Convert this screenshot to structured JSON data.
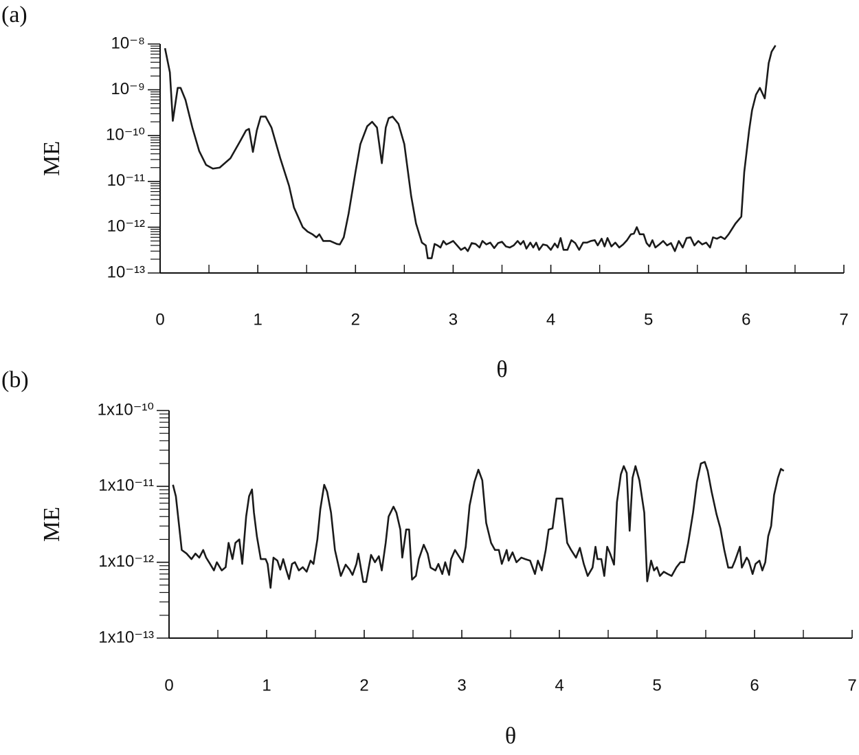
{
  "chart_data": [
    {
      "type": "line",
      "title": "(a)",
      "x_label": "θ",
      "y_label": "ME",
      "color": "#1a1a1a",
      "log_y": true,
      "xlim": [
        0,
        7
      ],
      "xticks": [
        0,
        1,
        2,
        3,
        4,
        5,
        6,
        7
      ],
      "xminor": [
        0.5,
        1.5,
        2.5,
        3.5,
        4.5,
        5.5,
        6.5
      ],
      "ylim": [
        1e-13,
        1e-08
      ],
      "yticks": [
        {
          "value": 1e-13,
          "label": "10⁻¹³"
        },
        {
          "value": 1e-12,
          "label": "10⁻¹²"
        },
        {
          "value": 1e-11,
          "label": "10⁻¹¹"
        },
        {
          "value": 1e-10,
          "label": "10⁻¹⁰"
        },
        {
          "value": 1e-09,
          "label": "10⁻⁹"
        },
        {
          "value": 1e-08,
          "label": "10⁻⁸"
        }
      ],
      "yminor": [
        2e-13,
        3e-13,
        4e-13,
        5e-13,
        6e-13,
        7e-13,
        8e-13,
        9e-13,
        2e-12,
        3e-12,
        4e-12,
        5e-12,
        6e-12,
        7e-12,
        8e-12,
        9e-12,
        2e-11,
        3e-11,
        4e-11,
        5e-11,
        6e-11,
        7e-11,
        8e-11,
        9e-11,
        2e-10,
        3e-10,
        4e-10,
        5e-10,
        6e-10,
        7e-10,
        8e-10,
        9e-10,
        2e-09,
        3e-09,
        4e-09,
        5e-09,
        6e-09,
        7e-09,
        8e-09,
        9e-09
      ],
      "x": [
        0.05,
        0.1,
        0.13,
        0.18,
        0.21,
        0.26,
        0.33,
        0.4,
        0.47,
        0.54,
        0.61,
        0.72,
        0.82,
        0.88,
        0.91,
        0.95,
        0.99,
        1.03,
        1.08,
        1.14,
        1.23,
        1.32,
        1.37,
        1.46,
        1.51,
        1.56,
        1.6,
        1.63,
        1.67,
        1.74,
        1.81,
        1.84,
        1.88,
        1.93,
        2.0,
        2.05,
        2.12,
        2.17,
        2.22,
        2.27,
        2.31,
        2.34,
        2.38,
        2.44,
        2.5,
        2.57,
        2.62,
        2.68,
        2.72,
        2.74,
        2.78,
        2.81,
        2.84,
        2.87,
        2.9,
        2.93,
        2.96,
        3.0,
        3.04,
        3.08,
        3.12,
        3.15,
        3.19,
        3.23,
        3.27,
        3.3,
        3.34,
        3.38,
        3.42,
        3.46,
        3.5,
        3.54,
        3.58,
        3.62,
        3.66,
        3.69,
        3.72,
        3.75,
        3.79,
        3.82,
        3.85,
        3.88,
        3.92,
        3.96,
        4.0,
        4.04,
        4.07,
        4.1,
        4.13,
        4.17,
        4.21,
        4.25,
        4.29,
        4.33,
        4.37,
        4.41,
        4.45,
        4.48,
        4.52,
        4.55,
        4.58,
        4.62,
        4.66,
        4.7,
        4.74,
        4.78,
        4.82,
        4.85,
        4.88,
        4.91,
        4.95,
        4.98,
        5.01,
        5.04,
        5.07,
        5.11,
        5.15,
        5.19,
        5.23,
        5.27,
        5.31,
        5.35,
        5.39,
        5.43,
        5.47,
        5.51,
        5.55,
        5.59,
        5.63,
        5.66,
        5.7,
        5.74,
        5.78,
        5.82,
        5.89,
        5.95,
        5.98,
        6.03,
        6.06,
        6.1,
        6.14,
        6.19,
        6.23,
        6.26,
        6.3
      ],
      "values": [
        8.1e-09,
        2.4e-09,
        2.1e-10,
        1.1e-09,
        1.1e-09,
        6e-10,
        1.5e-10,
        4.6e-11,
        2.3e-11,
        1.9e-11,
        2e-11,
        3.2e-11,
        7.6e-11,
        1.3e-10,
        1.4e-10,
        4.4e-11,
        1.3e-10,
        2.6e-10,
        2.6e-10,
        1.5e-10,
        3.2e-11,
        8e-12,
        2.7e-12,
        1e-12,
        8e-13,
        7e-13,
        6e-13,
        7e-13,
        5e-13,
        5e-13,
        4.3e-13,
        4.2e-13,
        6e-13,
        2e-12,
        1.6e-11,
        6.5e-11,
        1.6e-10,
        2e-10,
        1.5e-10,
        2.5e-11,
        1.5e-10,
        2.4e-10,
        2.6e-10,
        1.8e-10,
        6.5e-11,
        4.8e-12,
        1.2e-12,
        4.6e-13,
        4e-13,
        2.1e-13,
        2.1e-13,
        4.3e-13,
        4e-13,
        3.6e-13,
        5e-13,
        4.2e-13,
        4.5e-13,
        5e-13,
        4e-13,
        3.2e-13,
        3.6e-13,
        3e-13,
        4.5e-13,
        4.3e-13,
        3.6e-13,
        5e-13,
        4.2e-13,
        4.6e-13,
        3.5e-13,
        4.5e-13,
        4.8e-13,
        3.8e-13,
        3.6e-13,
        4e-13,
        5e-13,
        4.2e-13,
        5e-13,
        3.4e-13,
        4.6e-13,
        3.6e-13,
        4.6e-13,
        3.2e-13,
        4.2e-13,
        4e-13,
        3.2e-13,
        4.4e-13,
        3.6e-13,
        5.8e-13,
        3.2e-13,
        3.2e-13,
        5.2e-13,
        4.5e-13,
        3.2e-13,
        4.6e-13,
        4.6e-13,
        5e-13,
        5.2e-13,
        4e-13,
        5.6e-13,
        3.8e-13,
        5.8e-13,
        3.8e-13,
        4.6e-13,
        3.6e-13,
        4.2e-13,
        5.2e-13,
        7e-13,
        7.2e-13,
        1e-12,
        7e-13,
        7e-13,
        4.5e-13,
        3.8e-13,
        5.2e-13,
        3.6e-13,
        4.2e-13,
        5e-13,
        4e-13,
        4.5e-13,
        3e-13,
        5e-13,
        3.6e-13,
        5.8e-13,
        6e-13,
        4e-13,
        5e-13,
        4.2e-13,
        4.6e-13,
        3.6e-13,
        6e-13,
        5.6e-13,
        6.2e-13,
        5.5e-13,
        7e-13,
        1.2e-12,
        1.7e-12,
        1.6e-11,
        1.3e-10,
        3.6e-10,
        7.8e-10,
        1.1e-09,
        6.5e-10,
        3.8e-09,
        6.8e-09,
        9.3e-09
      ]
    },
    {
      "type": "line",
      "title": "(b)",
      "x_label": "θ",
      "y_label": "ME",
      "color": "#1a1a1a",
      "log_y": true,
      "xlim": [
        0,
        7
      ],
      "xticks": [
        0,
        1,
        2,
        3,
        4,
        5,
        6,
        7
      ],
      "xminor": [
        0.5,
        1.5,
        2.5,
        3.5,
        4.5,
        5.5,
        6.5
      ],
      "ylim": [
        1e-13,
        1e-10
      ],
      "yticks": [
        {
          "value": 1e-13,
          "label": "1x10⁻¹³"
        },
        {
          "value": 1e-12,
          "label": "1x10⁻¹²"
        },
        {
          "value": 1e-11,
          "label": "1x10⁻¹¹"
        },
        {
          "value": 1e-10,
          "label": "1x10⁻¹⁰"
        }
      ],
      "yminor": [
        2e-13,
        3e-13,
        4e-13,
        5e-13,
        6e-13,
        7e-13,
        8e-13,
        9e-13,
        2e-12,
        3e-12,
        4e-12,
        5e-12,
        6e-12,
        7e-12,
        8e-12,
        9e-12,
        2e-11,
        3e-11,
        4e-11,
        5e-11,
        6e-11,
        7e-11,
        8e-11,
        9e-11
      ],
      "x": [
        0.04,
        0.07,
        0.13,
        0.18,
        0.23,
        0.27,
        0.31,
        0.35,
        0.38,
        0.42,
        0.46,
        0.49,
        0.54,
        0.58,
        0.61,
        0.65,
        0.68,
        0.72,
        0.75,
        0.79,
        0.82,
        0.85,
        0.87,
        0.9,
        0.94,
        0.99,
        1.01,
        1.04,
        1.07,
        1.11,
        1.14,
        1.17,
        1.2,
        1.23,
        1.26,
        1.29,
        1.33,
        1.37,
        1.41,
        1.45,
        1.48,
        1.52,
        1.55,
        1.59,
        1.62,
        1.66,
        1.7,
        1.76,
        1.81,
        1.85,
        1.88,
        1.92,
        1.94,
        1.99,
        2.02,
        2.07,
        2.11,
        2.15,
        2.18,
        2.22,
        2.25,
        2.3,
        2.33,
        2.37,
        2.39,
        2.43,
        2.46,
        2.49,
        2.53,
        2.56,
        2.61,
        2.65,
        2.68,
        2.73,
        2.76,
        2.8,
        2.83,
        2.87,
        2.89,
        2.93,
        2.97,
        3.01,
        3.04,
        3.08,
        3.13,
        3.17,
        3.21,
        3.25,
        3.3,
        3.34,
        3.38,
        3.41,
        3.46,
        3.48,
        3.52,
        3.56,
        3.61,
        3.65,
        3.7,
        3.75,
        3.78,
        3.82,
        3.86,
        3.89,
        3.93,
        3.97,
        4.03,
        4.08,
        4.12,
        4.17,
        4.21,
        4.25,
        4.29,
        4.34,
        4.37,
        4.39,
        4.43,
        4.46,
        4.49,
        4.52,
        4.56,
        4.59,
        4.63,
        4.66,
        4.69,
        4.72,
        4.75,
        4.78,
        4.82,
        4.87,
        4.9,
        4.94,
        4.97,
        5.0,
        5.03,
        5.07,
        5.11,
        5.15,
        5.2,
        5.24,
        5.28,
        5.32,
        5.37,
        5.41,
        5.45,
        5.49,
        5.52,
        5.56,
        5.61,
        5.65,
        5.69,
        5.73,
        5.77,
        5.8,
        5.85,
        5.87,
        5.92,
        5.94,
        5.98,
        6.01,
        6.05,
        6.08,
        6.11,
        6.14,
        6.17,
        6.2,
        6.24,
        6.27,
        6.3
      ],
      "values": [
        1.05e-11,
        7.4e-12,
        1.45e-12,
        1.3e-12,
        1.1e-12,
        1.3e-12,
        1.15e-12,
        1.45e-12,
        1.15e-12,
        9.5e-13,
        7.8e-13,
        1e-12,
        7.8e-13,
        8.6e-13,
        1.8e-12,
        1.1e-12,
        1.8e-12,
        2e-12,
        9.5e-13,
        4e-12,
        7.4e-12,
        9.1e-12,
        4.5e-12,
        2.2e-12,
        1.1e-12,
        1.1e-12,
        9.5e-13,
        4.6e-13,
        1.15e-12,
        1.05e-12,
        8e-13,
        1.1e-12,
        8e-13,
        6e-13,
        9.5e-13,
        1e-12,
        7.8e-13,
        8.6e-13,
        7.5e-13,
        1.05e-12,
        9.5e-13,
        2e-12,
        5e-12,
        1.05e-11,
        8.5e-12,
        4.5e-12,
        1.45e-12,
        6.6e-13,
        9.3e-13,
        8e-13,
        6.8e-13,
        9.5e-13,
        1.3e-12,
        5.5e-13,
        5.5e-13,
        1.25e-12,
        1e-12,
        1.2e-12,
        7.8e-13,
        1.8e-12,
        4e-12,
        5.4e-12,
        4.5e-12,
        2.7e-12,
        1.15e-12,
        2.7e-12,
        2.7e-12,
        5.9e-13,
        6.6e-13,
        1.1e-12,
        1.7e-12,
        1.3e-12,
        8.5e-13,
        7.8e-13,
        9.5e-13,
        7e-13,
        1e-12,
        6.8e-13,
        1.1e-12,
        1.45e-12,
        1.2e-12,
        1e-12,
        1.6e-12,
        5.6e-12,
        1.15e-11,
        1.66e-11,
        1.2e-11,
        3.3e-12,
        1.8e-12,
        1.45e-12,
        1.45e-12,
        9.5e-13,
        1.45e-12,
        1.05e-12,
        1.35e-12,
        1e-12,
        1.15e-12,
        1.1e-12,
        1.05e-12,
        7e-13,
        1.05e-12,
        7.8e-13,
        1.45e-12,
        2.7e-12,
        2.8e-12,
        6.9e-12,
        6.9e-12,
        1.8e-12,
        1.45e-12,
        1.15e-12,
        1.55e-12,
        9.5e-13,
        6.6e-13,
        8.5e-13,
        1.6e-12,
        1.1e-12,
        1.1e-12,
        6.6e-13,
        1.6e-12,
        1.3e-12,
        9.3e-13,
        6.2e-12,
        1.44e-11,
        1.85e-11,
        1.5e-11,
        2.6e-12,
        1.3e-11,
        1.85e-11,
        1.2e-11,
        4.5e-12,
        5.6e-13,
        1.05e-12,
        7.8e-13,
        8.6e-13,
        6.6e-13,
        7.5e-13,
        7e-13,
        6.6e-13,
        8.6e-13,
        1e-12,
        1e-12,
        1.8e-12,
        4.5e-12,
        1.15e-11,
        2e-11,
        2.1e-11,
        1.6e-11,
        8.5e-12,
        4.3e-12,
        2.8e-12,
        1.45e-12,
        8.5e-13,
        8.5e-13,
        1.05e-12,
        1.6e-12,
        8.5e-13,
        1.15e-12,
        1.05e-12,
        7e-13,
        9.5e-13,
        1.05e-12,
        7.8e-13,
        1e-12,
        2.2e-12,
        3e-12,
        7.7e-12,
        1.3e-11,
        1.7e-11,
        1.6e-11
      ]
    }
  ]
}
